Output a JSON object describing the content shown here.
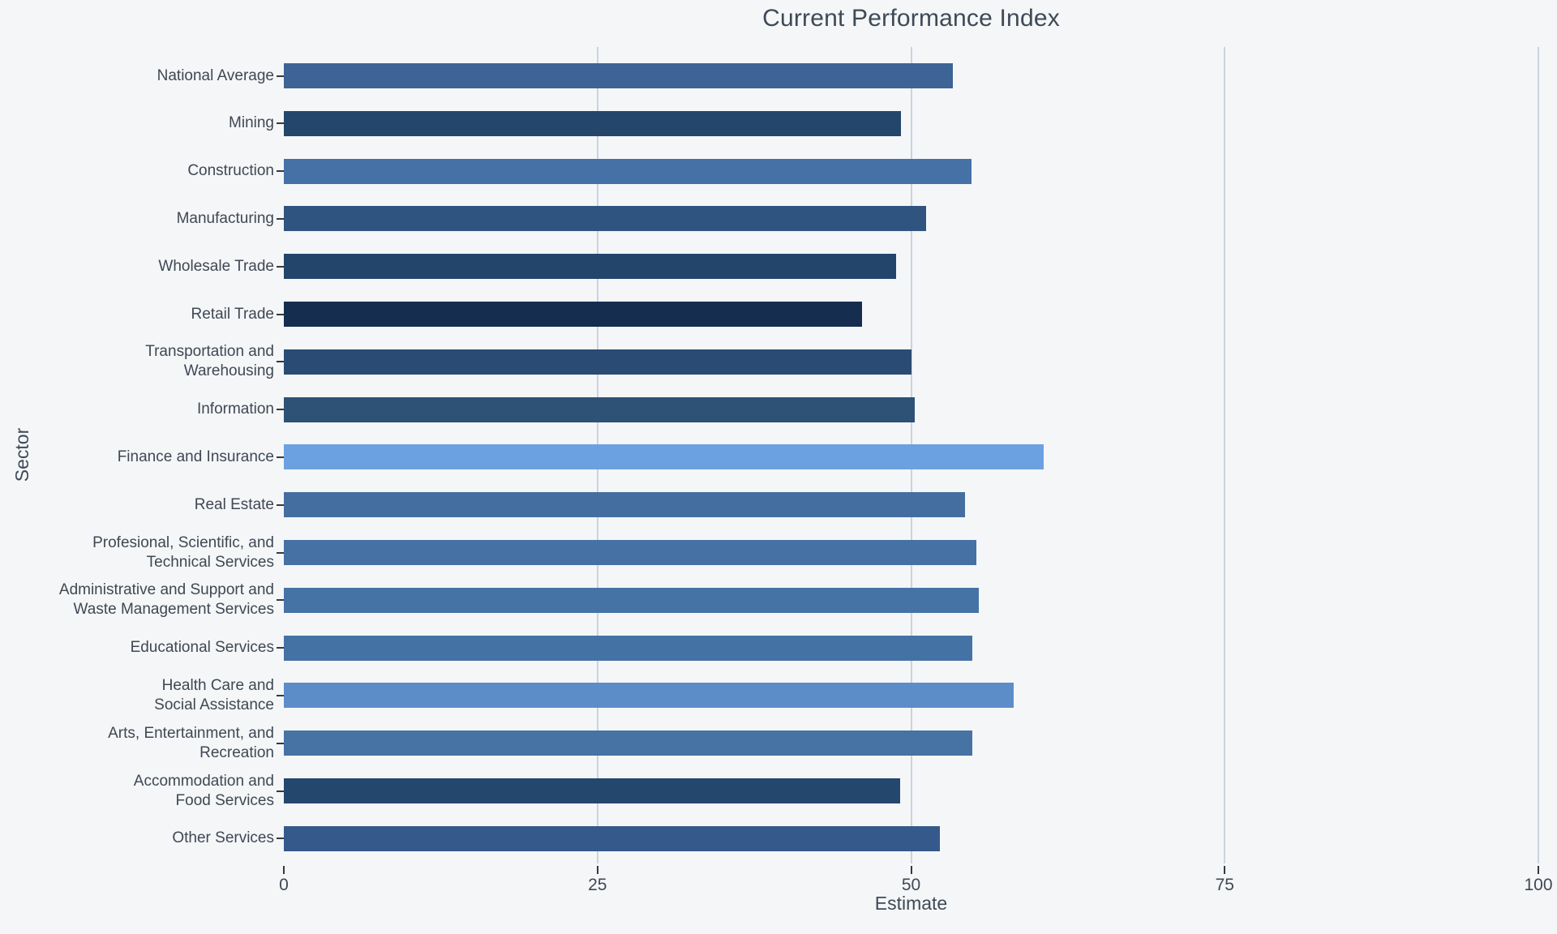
{
  "title": "Current Performance Index",
  "axes": {
    "x_title": "Estimate",
    "y_title": "Sector"
  },
  "style": {
    "background": "#f4f6f8",
    "gridline_color": "#c9d4e2",
    "tick_color": "#333a42",
    "text_color": "#3f4853",
    "title_color": "#3e4a56"
  },
  "chart_data": {
    "type": "bar",
    "orientation": "horizontal",
    "title": "Current Performance Index",
    "xlabel": "Estimate",
    "ylabel": "Sector",
    "xlim": [
      0,
      100
    ],
    "xticks": [
      0,
      25,
      50,
      75,
      100
    ],
    "xtick_labels": [
      "0",
      "25",
      "50",
      "75",
      "100"
    ],
    "grid": true,
    "gridlines_at": [
      25,
      50,
      75,
      100
    ],
    "legend": "none",
    "color_mapping": "bar color shade encodes value: dark navy = low, light blue = high",
    "categories": [
      "National Average",
      "Mining",
      "Construction",
      "Manufacturing",
      "Wholesale Trade",
      "Retail Trade",
      "Transportation and\nWarehousing",
      "Information",
      "Finance and Insurance",
      "Real Estate",
      "Profesional, Scientific, and\nTechnical Services",
      "Administrative and Support and\nWaste Management Services",
      "Educational Services",
      "Health Care and\nSocial Assistance",
      "Arts, Entertainment, and\nRecreation",
      "Accommodation and\nFood Services",
      "Other Services"
    ],
    "values": [
      53.3,
      49.2,
      54.8,
      51.2,
      48.8,
      46.1,
      50.0,
      50.3,
      60.6,
      54.3,
      55.2,
      55.4,
      54.9,
      58.2,
      54.9,
      49.1,
      52.3
    ],
    "bar_colors": [
      "#3e6496",
      "#24466b",
      "#4571a6",
      "#2f547f",
      "#23456b",
      "#152d4f",
      "#2a4c74",
      "#2e5176",
      "#6ba1e1",
      "#446e9f",
      "#4671a4",
      "#4673a6",
      "#4572a5",
      "#5c8dc9",
      "#4672a4",
      "#24476d",
      "#35598a"
    ]
  }
}
